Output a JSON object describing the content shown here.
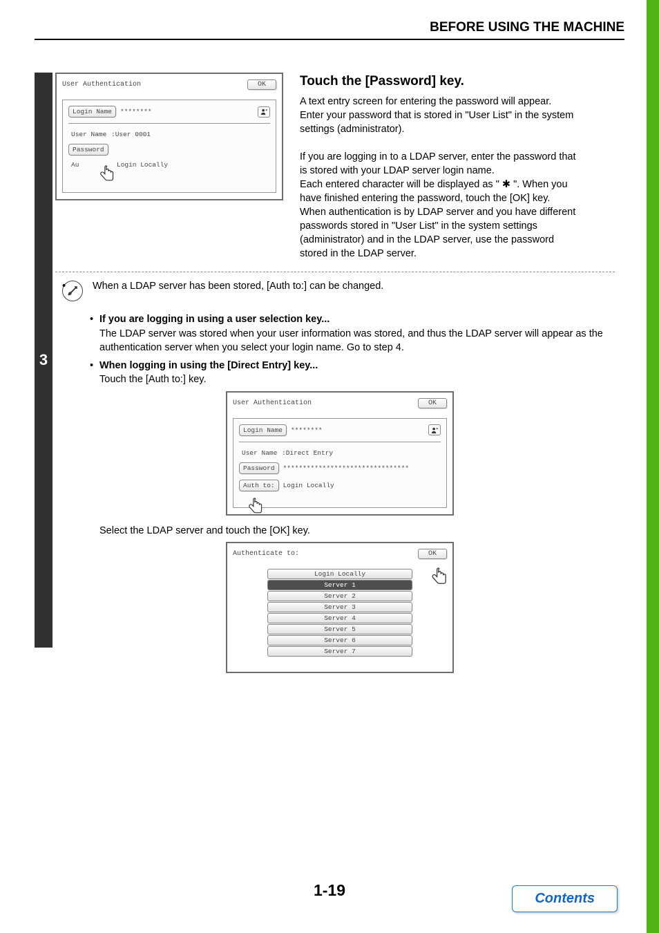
{
  "header": {
    "title": "BEFORE USING THE MACHINE"
  },
  "sidebar": {
    "step_number": "3"
  },
  "panel1": {
    "title": "User Authentication",
    "ok": "OK",
    "login_name_label": "Login Name",
    "login_name_value": "********",
    "user_name_label": "User Name",
    "user_name_value": ":User 0001",
    "password_label": "Password",
    "auth_label": "Au",
    "auth_value": "Login Locally"
  },
  "explain1": {
    "title": "Touch the [Password] key.",
    "p1": "A text entry screen for entering the password will appear. Enter your password that is stored in \"User List\" in the system settings (administrator).",
    "p2": "If you are logging in to a LDAP server, enter the password that is stored with your LDAP server login name.",
    "p3": "Each entered character will be displayed as \" ✱ \". When you have finished entering the password, touch the [OK] key.",
    "p4": "When authentication is by LDAP server and you have different passwords stored in \"User List\" in the system settings (administrator) and in the LDAP server, use the password stored in the LDAP server."
  },
  "note1": "When a LDAP server has been stored, [Auth to:] can be changed.",
  "bullet1_title": "If you are logging in using a user selection key...",
  "bullet1_body": "The LDAP server was stored when your user information was stored, and thus the LDAP server will appear as the authentication server when you select your login name. Go to step 4.",
  "bullet2_title": "When logging in using the [Direct Entry] key...",
  "bullet2_body": "Touch the [Auth to:] key.",
  "panel2": {
    "title": "User Authentication",
    "ok": "OK",
    "login_name_label": "Login Name",
    "login_name_value": "********",
    "user_name_label": "User Name",
    "user_name_value": ":Direct Entry",
    "password_label": "Password",
    "password_value": "********************************",
    "auth_label": "Auth to:",
    "auth_value": "Login Locally"
  },
  "select_text": "Select the LDAP server and touch the [OK] key.",
  "panel3": {
    "title": "Authenticate to:",
    "ok": "OK",
    "items": [
      "Login Locally",
      "Server 1",
      "Server 2",
      "Server 3",
      "Server 4",
      "Server 5",
      "Server 6",
      "Server 7"
    ],
    "selected_index": 1
  },
  "page_number": "1-19",
  "contents_label": "Contents",
  "colors": {
    "green": "#4fb315",
    "link_blue": "#1165c4",
    "sidebar": "#303030"
  }
}
